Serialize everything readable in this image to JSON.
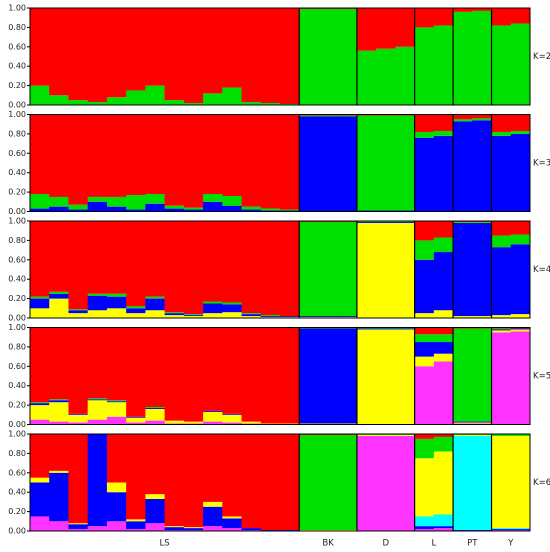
{
  "populations": [
    "LS",
    "BK",
    "D",
    "L",
    "PT",
    "Y"
  ],
  "chart_data": [
    {
      "type": "structure",
      "title": "K=2",
      "ylim": [
        0,
        1
      ],
      "yticks": [
        {
          "value": 0,
          "label": "0.00"
        },
        {
          "value": 0.2,
          "label": "0.20"
        },
        {
          "value": 0.4,
          "label": "0.40"
        },
        {
          "value": 0.6,
          "label": "0.60"
        },
        {
          "value": 0.8,
          "label": "0.80"
        },
        {
          "value": 1,
          "label": "1.00"
        }
      ],
      "colors": [
        "#00e000",
        "#ff0000"
      ],
      "groups": [
        [
          [
            0.2,
            0.8
          ],
          [
            0.1,
            0.9
          ],
          [
            0.05,
            0.95
          ],
          [
            0.03,
            0.97
          ],
          [
            0.08,
            0.92
          ],
          [
            0.15,
            0.85
          ],
          [
            0.2,
            0.8
          ],
          [
            0.05,
            0.95
          ],
          [
            0.02,
            0.98
          ],
          [
            0.12,
            0.88
          ],
          [
            0.18,
            0.82
          ],
          [
            0.03,
            0.97
          ],
          [
            0.02,
            0.98
          ],
          [
            0.01,
            0.99
          ]
        ],
        [
          [
            0.99,
            0.01
          ],
          [
            0.99,
            0.01
          ],
          [
            0.99,
            0.01
          ]
        ],
        [
          [
            0.56,
            0.44
          ],
          [
            0.58,
            0.42
          ],
          [
            0.6,
            0.4
          ]
        ],
        [
          [
            0.8,
            0.2
          ],
          [
            0.82,
            0.18
          ]
        ],
        [
          [
            0.96,
            0.04
          ],
          [
            0.97,
            0.03
          ]
        ],
        [
          [
            0.82,
            0.18
          ],
          [
            0.84,
            0.16
          ]
        ]
      ]
    },
    {
      "type": "structure",
      "title": "K=3",
      "ylim": [
        0,
        1
      ],
      "yticks": [
        {
          "value": 0,
          "label": "0.00"
        },
        {
          "value": 0.2,
          "label": "0.20"
        },
        {
          "value": 0.4,
          "label": "0.40"
        },
        {
          "value": 0.6,
          "label": "0.60"
        },
        {
          "value": 0.8,
          "label": "0.80"
        },
        {
          "value": 1,
          "label": "1.00"
        }
      ],
      "colors": [
        "#0000ff",
        "#00e000",
        "#ff0000"
      ],
      "groups": [
        [
          [
            0.03,
            0.15,
            0.82
          ],
          [
            0.05,
            0.1,
            0.85
          ],
          [
            0.02,
            0.05,
            0.93
          ],
          [
            0.1,
            0.05,
            0.85
          ],
          [
            0.05,
            0.1,
            0.85
          ],
          [
            0.02,
            0.15,
            0.83
          ],
          [
            0.08,
            0.1,
            0.82
          ],
          [
            0.03,
            0.03,
            0.94
          ],
          [
            0.02,
            0.02,
            0.96
          ],
          [
            0.1,
            0.08,
            0.82
          ],
          [
            0.06,
            0.1,
            0.84
          ],
          [
            0.02,
            0.03,
            0.95
          ],
          [
            0.01,
            0.02,
            0.97
          ],
          [
            0.01,
            0.01,
            0.98
          ]
        ],
        [
          [
            0.98,
            0.01,
            0.01
          ],
          [
            0.98,
            0.01,
            0.01
          ],
          [
            0.98,
            0.01,
            0.01
          ]
        ],
        [
          [
            0.01,
            0.98,
            0.01
          ],
          [
            0.01,
            0.98,
            0.01
          ],
          [
            0.01,
            0.98,
            0.01
          ]
        ],
        [
          [
            0.76,
            0.06,
            0.18
          ],
          [
            0.78,
            0.05,
            0.17
          ]
        ],
        [
          [
            0.93,
            0.02,
            0.05
          ],
          [
            0.94,
            0.02,
            0.04
          ]
        ],
        [
          [
            0.78,
            0.04,
            0.18
          ],
          [
            0.8,
            0.03,
            0.17
          ]
        ]
      ]
    },
    {
      "type": "structure",
      "title": "K=4",
      "ylim": [
        0,
        1
      ],
      "yticks": [
        {
          "value": 0,
          "label": "0.00"
        },
        {
          "value": 0.2,
          "label": "0.20"
        },
        {
          "value": 0.4,
          "label": "0.40"
        },
        {
          "value": 0.6,
          "label": "0.60"
        },
        {
          "value": 0.8,
          "label": "0.80"
        },
        {
          "value": 1,
          "label": "1.00"
        }
      ],
      "colors": [
        "#ffff00",
        "#0000ff",
        "#00e000",
        "#ff0000"
      ],
      "groups": [
        [
          [
            0.1,
            0.1,
            0.02,
            0.78
          ],
          [
            0.2,
            0.05,
            0.02,
            0.73
          ],
          [
            0.05,
            0.03,
            0.01,
            0.91
          ],
          [
            0.08,
            0.15,
            0.02,
            0.75
          ],
          [
            0.1,
            0.12,
            0.03,
            0.75
          ],
          [
            0.05,
            0.05,
            0.02,
            0.88
          ],
          [
            0.08,
            0.12,
            0.02,
            0.78
          ],
          [
            0.03,
            0.02,
            0.01,
            0.94
          ],
          [
            0.02,
            0.01,
            0.01,
            0.96
          ],
          [
            0.05,
            0.1,
            0.02,
            0.83
          ],
          [
            0.06,
            0.08,
            0.02,
            0.84
          ],
          [
            0.02,
            0.02,
            0.01,
            0.95
          ],
          [
            0.01,
            0.01,
            0.01,
            0.97
          ],
          [
            0.01,
            0.01,
            0,
            0.98
          ]
        ],
        [
          [
            0.01,
            0.01,
            0.97,
            0.01
          ],
          [
            0.01,
            0.01,
            0.97,
            0.01
          ],
          [
            0.01,
            0.01,
            0.97,
            0.01
          ]
        ],
        [
          [
            0.98,
            0.01,
            0.01,
            0
          ],
          [
            0.98,
            0.01,
            0.01,
            0
          ],
          [
            0.98,
            0.01,
            0.01,
            0
          ]
        ],
        [
          [
            0.05,
            0.55,
            0.2,
            0.2
          ],
          [
            0.08,
            0.6,
            0.15,
            0.17
          ]
        ],
        [
          [
            0.02,
            0.96,
            0.01,
            0.01
          ],
          [
            0.02,
            0.96,
            0.01,
            0.01
          ]
        ],
        [
          [
            0.03,
            0.7,
            0.12,
            0.15
          ],
          [
            0.04,
            0.72,
            0.1,
            0.14
          ]
        ]
      ]
    },
    {
      "type": "structure",
      "title": "K=5",
      "ylim": [
        0,
        1
      ],
      "yticks": [
        {
          "value": 0,
          "label": "0.00"
        },
        {
          "value": 0.2,
          "label": "0.20"
        },
        {
          "value": 0.4,
          "label": "0.40"
        },
        {
          "value": 0.6,
          "label": "0.60"
        },
        {
          "value": 0.8,
          "label": "0.80"
        },
        {
          "value": 1,
          "label": "1.00"
        }
      ],
      "colors": [
        "#ff33ff",
        "#ffff00",
        "#0000ff",
        "#00e000",
        "#ff0000"
      ],
      "groups": [
        [
          [
            0.05,
            0.15,
            0.02,
            0.01,
            0.77
          ],
          [
            0.03,
            0.2,
            0.02,
            0.01,
            0.74
          ],
          [
            0.02,
            0.08,
            0.01,
            0,
            0.89
          ],
          [
            0.05,
            0.2,
            0.01,
            0.01,
            0.73
          ],
          [
            0.08,
            0.15,
            0.01,
            0.01,
            0.75
          ],
          [
            0.02,
            0.05,
            0.01,
            0,
            0.92
          ],
          [
            0.04,
            0.12,
            0.01,
            0.01,
            0.82
          ],
          [
            0.01,
            0.03,
            0,
            0,
            0.96
          ],
          [
            0.01,
            0.02,
            0,
            0,
            0.97
          ],
          [
            0.03,
            0.1,
            0.01,
            0,
            0.86
          ],
          [
            0.02,
            0.08,
            0.01,
            0,
            0.89
          ],
          [
            0.01,
            0.02,
            0,
            0,
            0.97
          ],
          [
            0,
            0.01,
            0,
            0,
            0.99
          ],
          [
            0,
            0.01,
            0,
            0,
            0.99
          ]
        ],
        [
          [
            0,
            0.01,
            0.98,
            0.01,
            0
          ],
          [
            0,
            0.01,
            0.98,
            0.01,
            0
          ],
          [
            0,
            0.01,
            0.98,
            0.01,
            0
          ]
        ],
        [
          [
            0,
            0.98,
            0.01,
            0.01,
            0
          ],
          [
            0,
            0.98,
            0.01,
            0.01,
            0
          ],
          [
            0,
            0.98,
            0.01,
            0.01,
            0
          ]
        ],
        [
          [
            0.6,
            0.1,
            0.15,
            0.08,
            0.07
          ],
          [
            0.65,
            0.08,
            0.12,
            0.08,
            0.07
          ]
        ],
        [
          [
            0.01,
            0.01,
            0.01,
            0.96,
            0.01
          ],
          [
            0.01,
            0.01,
            0.01,
            0.96,
            0.01
          ]
        ],
        [
          [
            0.95,
            0.02,
            0.01,
            0.01,
            0.01
          ],
          [
            0.96,
            0.02,
            0.01,
            0,
            0.01
          ]
        ]
      ]
    },
    {
      "type": "structure",
      "title": "K=6",
      "ylim": [
        0,
        1
      ],
      "yticks": [
        {
          "value": 0,
          "label": "0.00"
        },
        {
          "value": 0.2,
          "label": "0.20"
        },
        {
          "value": 0.4,
          "label": "0.40"
        },
        {
          "value": 0.6,
          "label": "0.60"
        },
        {
          "value": 0.8,
          "label": "0.80"
        },
        {
          "value": 1,
          "label": "1.00"
        }
      ],
      "colors": [
        "#ff33ff",
        "#0000ff",
        "#00ffff",
        "#ffff00",
        "#00e000",
        "#ff0000"
      ],
      "groups": [
        [
          [
            0.15,
            0.35,
            0,
            0.05,
            0,
            0.45
          ],
          [
            0.1,
            0.5,
            0,
            0.02,
            0,
            0.38
          ],
          [
            0.02,
            0.05,
            0,
            0.01,
            0,
            0.92
          ],
          [
            0.05,
            0.95,
            0,
            0,
            0,
            0
          ],
          [
            0.1,
            0.3,
            0,
            0.1,
            0,
            0.5
          ],
          [
            0.02,
            0.08,
            0,
            0.02,
            0,
            0.88
          ],
          [
            0.08,
            0.25,
            0,
            0.05,
            0,
            0.62
          ],
          [
            0.01,
            0.03,
            0,
            0.01,
            0,
            0.95
          ],
          [
            0.01,
            0.02,
            0,
            0.01,
            0,
            0.96
          ],
          [
            0.05,
            0.2,
            0,
            0.05,
            0,
            0.7
          ],
          [
            0.03,
            0.1,
            0,
            0.02,
            0,
            0.85
          ],
          [
            0.01,
            0.02,
            0,
            0,
            0,
            0.97
          ],
          [
            0,
            0.01,
            0,
            0,
            0,
            0.99
          ],
          [
            0,
            0.01,
            0,
            0,
            0,
            0.99
          ]
        ],
        [
          [
            0,
            0,
            0,
            0.01,
            0.98,
            0.01
          ],
          [
            0,
            0,
            0,
            0.01,
            0.98,
            0.01
          ],
          [
            0,
            0,
            0,
            0.01,
            0.98,
            0.01
          ]
        ],
        [
          [
            0.98,
            0,
            0,
            0.01,
            0.01,
            0
          ],
          [
            0.98,
            0,
            0,
            0.01,
            0.01,
            0
          ],
          [
            0.98,
            0,
            0,
            0.01,
            0.01,
            0
          ]
        ],
        [
          [
            0.02,
            0.03,
            0.1,
            0.6,
            0.2,
            0.05
          ],
          [
            0.03,
            0.02,
            0.12,
            0.65,
            0.15,
            0.03
          ]
        ],
        [
          [
            0,
            0.01,
            0.97,
            0.01,
            0.01,
            0
          ],
          [
            0,
            0.01,
            0.97,
            0.01,
            0.01,
            0
          ]
        ],
        [
          [
            0.01,
            0.01,
            0.01,
            0.95,
            0.02,
            0
          ],
          [
            0.01,
            0.01,
            0.01,
            0.95,
            0.02,
            0
          ]
        ]
      ]
    }
  ]
}
